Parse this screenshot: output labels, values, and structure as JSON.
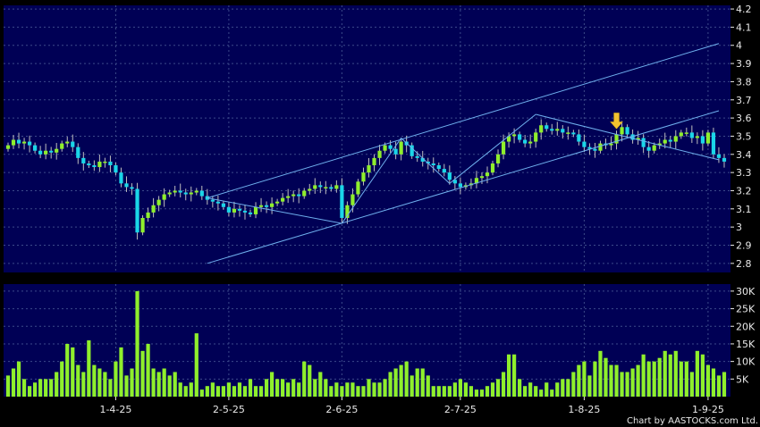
{
  "copyright": "Chart by AASTOCKS.com Ltd.",
  "colors": {
    "background": "#000000",
    "panel": "#000055",
    "grid": "#3c4a8a",
    "candle_up": "#8fef2c",
    "candle_down": "#1ad6e8",
    "volume": "#8fef2c",
    "trendline": "#6fb0ee",
    "marker": "#f2c230",
    "text": "#e8e8e8"
  },
  "chart_data": [
    {
      "type": "candlestick",
      "title": "",
      "ylim": [
        2.75,
        4.22
      ],
      "y_ticks": [
        "2.8",
        "2.9",
        "3",
        "3.1",
        "3.2",
        "3.3",
        "3.4",
        "3.5",
        "3.6",
        "3.7",
        "3.8",
        "3.9",
        "4",
        "4.1",
        "4.2"
      ],
      "x_ticks": [
        {
          "index": 20,
          "label": "1-4-25"
        },
        {
          "index": 41,
          "label": "2-5-25"
        },
        {
          "index": 62,
          "label": "2-6-25"
        },
        {
          "index": 84,
          "label": "2-7-25"
        },
        {
          "index": 107,
          "label": "1-8-25"
        },
        {
          "index": 130,
          "label": "1-9-25"
        }
      ],
      "count": 134,
      "close": [
        3.45,
        3.48,
        3.46,
        3.47,
        3.45,
        3.42,
        3.4,
        3.42,
        3.41,
        3.43,
        3.46,
        3.47,
        3.44,
        3.38,
        3.35,
        3.34,
        3.33,
        3.36,
        3.36,
        3.34,
        3.3,
        3.24,
        3.22,
        3.21,
        2.97,
        3.05,
        3.08,
        3.12,
        3.15,
        3.18,
        3.19,
        3.2,
        3.19,
        3.18,
        3.19,
        3.2,
        3.17,
        3.15,
        3.14,
        3.13,
        3.11,
        3.08,
        3.1,
        3.09,
        3.08,
        3.07,
        3.11,
        3.12,
        3.11,
        3.13,
        3.14,
        3.16,
        3.17,
        3.18,
        3.17,
        3.2,
        3.21,
        3.23,
        3.22,
        3.22,
        3.21,
        3.23,
        3.05,
        3.12,
        3.18,
        3.25,
        3.3,
        3.34,
        3.38,
        3.42,
        3.45,
        3.43,
        3.4,
        3.47,
        3.45,
        3.39,
        3.38,
        3.36,
        3.35,
        3.34,
        3.32,
        3.3,
        3.26,
        3.24,
        3.22,
        3.23,
        3.24,
        3.27,
        3.28,
        3.3,
        3.35,
        3.4,
        3.47,
        3.5,
        3.51,
        3.48,
        3.46,
        3.47,
        3.52,
        3.56,
        3.54,
        3.53,
        3.54,
        3.52,
        3.52,
        3.51,
        3.47,
        3.44,
        3.43,
        3.42,
        3.46,
        3.45,
        3.46,
        3.51,
        3.55,
        3.51,
        3.48,
        3.49,
        3.44,
        3.42,
        3.45,
        3.46,
        3.48,
        3.47,
        3.5,
        3.52,
        3.52,
        3.49,
        3.5,
        3.46,
        3.52,
        3.4,
        3.38,
        3.36
      ],
      "volume": [
        6,
        8,
        10,
        5,
        3,
        4,
        5,
        5,
        5,
        7,
        10,
        15,
        14,
        9,
        7,
        16,
        9,
        8,
        7,
        5,
        10,
        14,
        6,
        8,
        30,
        13,
        15,
        8,
        7,
        8,
        6,
        7,
        4,
        3,
        4,
        18,
        2,
        3,
        4,
        3,
        3,
        4,
        3,
        4,
        3,
        5,
        3,
        3,
        5,
        7,
        5,
        5,
        4,
        5,
        4,
        10,
        9,
        5,
        7,
        5,
        3,
        4,
        3,
        4,
        4,
        3,
        3,
        5,
        4,
        4,
        5,
        7,
        8,
        9,
        10,
        6,
        8,
        8,
        6,
        3,
        3,
        3,
        3,
        4,
        5,
        4,
        3,
        2,
        2,
        3,
        4,
        5,
        7,
        12,
        12,
        5,
        3,
        4,
        3,
        2,
        4,
        2,
        4,
        5,
        5,
        7,
        9,
        10,
        6,
        10,
        13,
        11,
        9,
        9,
        7,
        7,
        8,
        9,
        12,
        10,
        10,
        11,
        13,
        12,
        13,
        10,
        10,
        7,
        13,
        12,
        9,
        8,
        6,
        7
      ]
    }
  ],
  "volume_chart": {
    "ylim": [
      0,
      32
    ],
    "y_ticks": [
      "5K",
      "10K",
      "15K",
      "20K",
      "25K",
      "30K"
    ]
  }
}
